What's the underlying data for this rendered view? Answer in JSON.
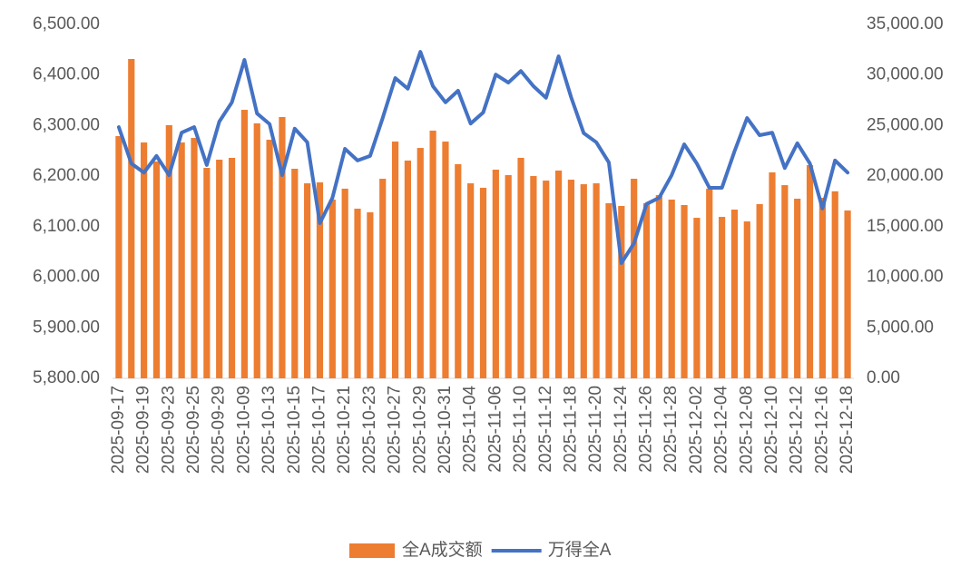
{
  "chart_data": {
    "type": "bar-line",
    "categories": [
      "2025-09-17",
      null,
      "2025-09-19",
      null,
      "2025-09-23",
      null,
      "2025-09-25",
      null,
      "2025-09-29",
      null,
      "2025-10-09",
      null,
      "2025-10-13",
      null,
      "2025-10-15",
      null,
      "2025-10-17",
      null,
      "2025-10-21",
      null,
      "2025-10-23",
      null,
      "2025-10-27",
      null,
      "2025-10-29",
      null,
      "2025-10-31",
      null,
      "2025-11-04",
      null,
      "2025-11-06",
      null,
      "2025-11-10",
      null,
      "2025-11-12",
      null,
      "2025-11-18",
      null,
      "2025-11-20",
      null,
      "2025-11-24",
      null,
      "2025-11-26",
      null,
      "2025-11-28",
      null,
      "2025-12-02",
      null,
      "2025-12-04",
      null,
      "2025-12-08",
      null,
      "2025-12-10",
      null,
      "2025-12-12",
      null,
      "2025-12-16",
      null,
      "2025-12-18"
    ],
    "series": [
      {
        "name": "全A成交额",
        "color": "#ed7d31",
        "axis": "y2",
        "kind": "bar",
        "values": [
          23960,
          31590,
          23330,
          21450,
          25040,
          23330,
          23780,
          20820,
          21630,
          21810,
          26560,
          25220,
          23600,
          25850,
          20730,
          19290,
          19380,
          17680,
          18760,
          16780,
          16420,
          19740,
          23420,
          21540,
          22790,
          24500,
          23420,
          21180,
          19290,
          18850,
          20640,
          20100,
          21810,
          20010,
          19560,
          20550,
          19650,
          19200,
          19290,
          17320,
          17050,
          19740,
          17320,
          18130,
          17680,
          17140,
          15880,
          18760,
          15970,
          16690,
          15520,
          17230,
          20370,
          19110,
          17770,
          21090,
          17860,
          18500,
          16600
        ]
      },
      {
        "name": "万得全A",
        "color": "#4472c4",
        "axis": "y",
        "kind": "line",
        "values": [
          6297,
          6225,
          6207,
          6240,
          6202,
          6286,
          6297,
          6222,
          6308,
          6346,
          6430,
          6324,
          6303,
          6202,
          6294,
          6267,
          6107,
          6157,
          6254,
          6231,
          6240,
          6315,
          6394,
          6373,
          6446,
          6378,
          6346,
          6369,
          6304,
          6326,
          6401,
          6385,
          6408,
          6378,
          6355,
          6437,
          6356,
          6285,
          6267,
          6227,
          6028,
          6067,
          6145,
          6157,
          6202,
          6263,
          6225,
          6177,
          6177,
          6249,
          6315,
          6281,
          6286,
          6216,
          6265,
          6225,
          6136,
          6231,
          6207
        ]
      }
    ],
    "ylim": [
      5800,
      6500
    ],
    "yticks": [
      {
        "value": 5800,
        "label": "5,800.00"
      },
      {
        "value": 5900,
        "label": "5,900.00"
      },
      {
        "value": 6000,
        "label": "6,000.00"
      },
      {
        "value": 6100,
        "label": "6,100.00"
      },
      {
        "value": 6200,
        "label": "6,200.00"
      },
      {
        "value": 6300,
        "label": "6,300.00"
      },
      {
        "value": 6400,
        "label": "6,400.00"
      },
      {
        "value": 6500,
        "label": "6,500.00"
      }
    ],
    "y2lim": [
      0,
      35000
    ],
    "y2ticks": [
      {
        "value": 0,
        "label": "0.00"
      },
      {
        "value": 5000,
        "label": "5,000.00"
      },
      {
        "value": 10000,
        "label": "10,000.00"
      },
      {
        "value": 15000,
        "label": "15,000.00"
      },
      {
        "value": 20000,
        "label": "20,000.00"
      },
      {
        "value": 25000,
        "label": "25,000.00"
      },
      {
        "value": 30000,
        "label": "30,000.00"
      },
      {
        "value": 35000,
        "label": "35,000.00"
      }
    ],
    "grid": false
  }
}
